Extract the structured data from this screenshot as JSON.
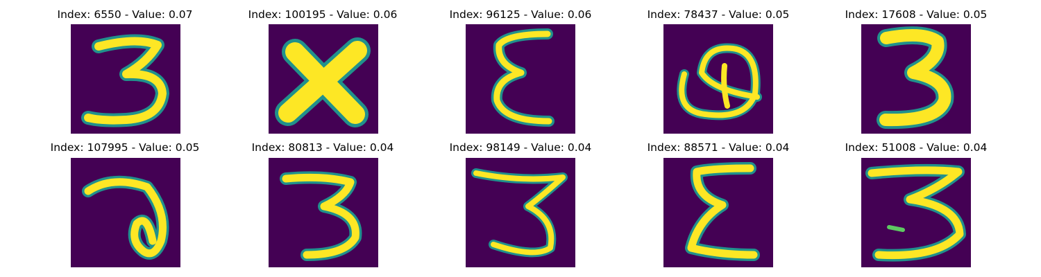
{
  "colors": {
    "background": "#440154",
    "edge": "#21918c",
    "mid": "#5ec962",
    "stroke": "#fde725"
  },
  "panels": [
    {
      "title": "Index: 6550 - Value: 0.07",
      "index": 6550,
      "value": 0.07,
      "glyph": "3"
    },
    {
      "title": "Index: 100195 - Value: 0.06",
      "index": 100195,
      "value": 0.06,
      "glyph": "X"
    },
    {
      "title": "Index: 96125 - Value: 0.06",
      "index": 96125,
      "value": 0.06,
      "glyph": "ε"
    },
    {
      "title": "Index: 78437 - Value: 0.05",
      "index": 78437,
      "value": 0.05,
      "glyph": "Q"
    },
    {
      "title": "Index: 17608 - Value: 0.05",
      "index": 17608,
      "value": 0.05,
      "glyph": "3"
    },
    {
      "title": "Index: 107995 - Value: 0.05",
      "index": 107995,
      "value": 0.05,
      "glyph": "∂"
    },
    {
      "title": "Index: 80813 - Value: 0.04",
      "index": 80813,
      "value": 0.04,
      "glyph": "3"
    },
    {
      "title": "Index: 98149 - Value: 0.04",
      "index": 98149,
      "value": 0.04,
      "glyph": "3"
    },
    {
      "title": "Index: 88571 - Value: 0.04",
      "index": 88571,
      "value": 0.04,
      "glyph": "Σ"
    },
    {
      "title": "Index: 51008 - Value: 0.04",
      "index": 51008,
      "value": 0.04,
      "glyph": "3"
    }
  ]
}
